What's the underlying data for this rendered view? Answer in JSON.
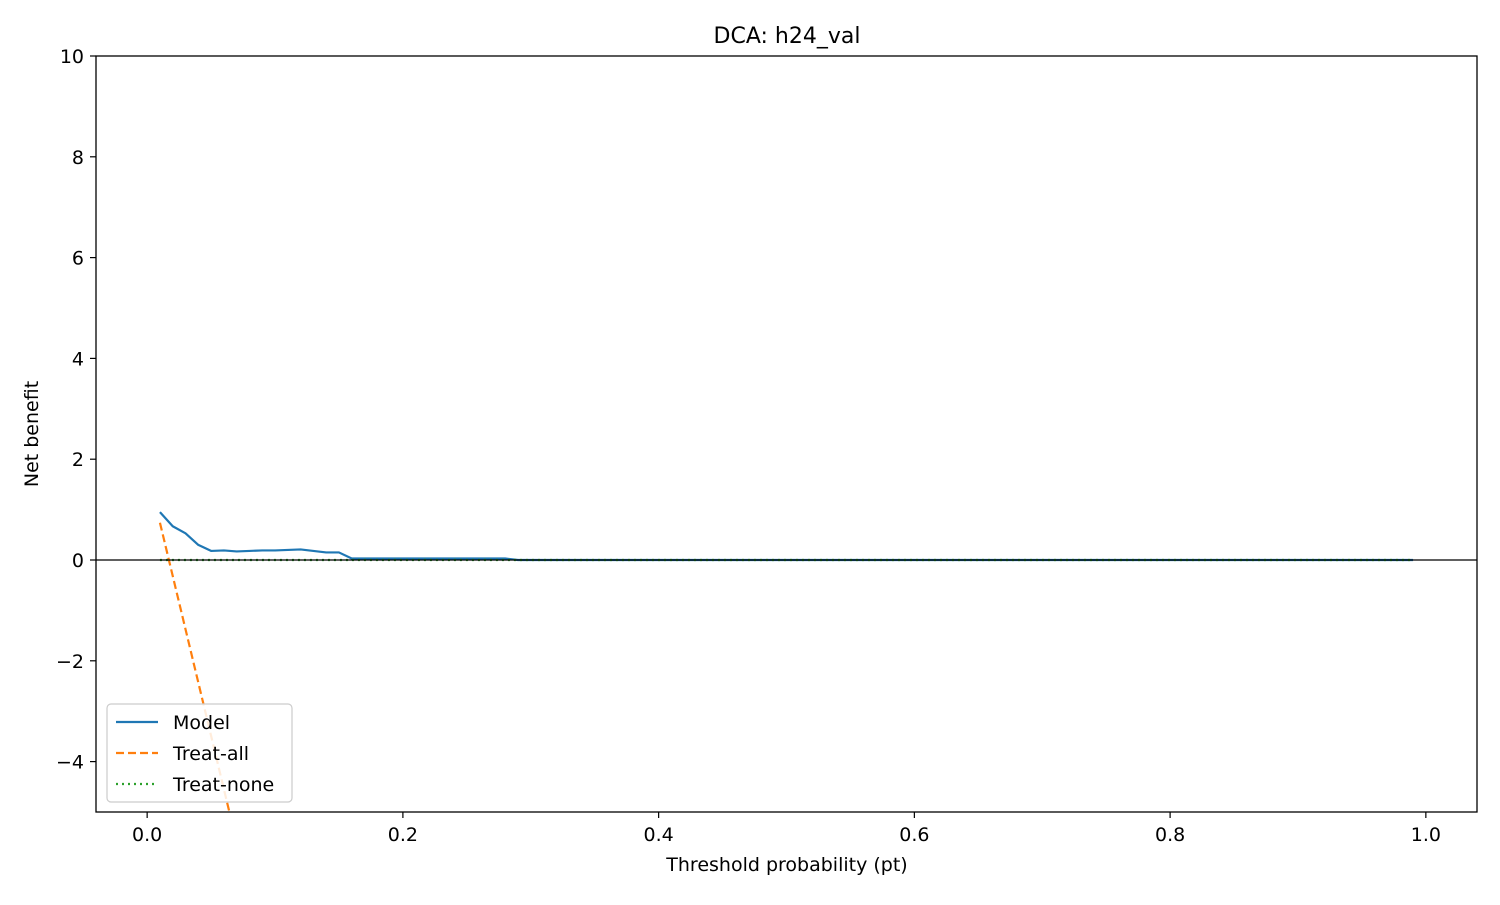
{
  "chart_data": {
    "type": "line",
    "title": "DCA: h24_val",
    "xlabel": "Threshold probability (pt)",
    "ylabel": "Net benefit",
    "xlim": [
      -0.04,
      1.04
    ],
    "ylim": [
      -5,
      10
    ],
    "x_ticks": [
      0.0,
      0.2,
      0.4,
      0.6,
      0.8,
      1.0
    ],
    "x_tick_labels": [
      "0.0",
      "0.2",
      "0.4",
      "0.6",
      "0.8",
      "1.0"
    ],
    "y_ticks": [
      -4,
      -2,
      0,
      2,
      4,
      6,
      8,
      10
    ],
    "y_tick_labels": [
      "−4",
      "−2",
      "0",
      "2",
      "4",
      "6",
      "8",
      "10"
    ],
    "reference_line_y": 0,
    "grid": false,
    "legend_position": "lower-left",
    "series": [
      {
        "name": "Model",
        "color": "#1f77b4",
        "style": "solid",
        "x": [
          0.01,
          0.02,
          0.03,
          0.04,
          0.05,
          0.06,
          0.07,
          0.08,
          0.09,
          0.1,
          0.11,
          0.12,
          0.13,
          0.14,
          0.15,
          0.16,
          0.17,
          0.2,
          0.25,
          0.28,
          0.29,
          0.35,
          0.5,
          0.7,
          0.9,
          0.99
        ],
        "y": [
          0.95,
          0.67,
          0.53,
          0.3,
          0.18,
          0.19,
          0.17,
          0.18,
          0.19,
          0.19,
          0.2,
          0.21,
          0.18,
          0.15,
          0.15,
          0.03,
          0.03,
          0.03,
          0.03,
          0.03,
          0.0,
          0.0,
          0.0,
          0.0,
          0.0,
          0.0
        ]
      },
      {
        "name": "Treat-all",
        "color": "#ff7f0e",
        "style": "dashed",
        "x": [
          0.01,
          0.0643
        ],
        "y": [
          0.74,
          -5.0
        ]
      },
      {
        "name": "Treat-none",
        "color": "#2ca02c",
        "style": "dotted",
        "x": [
          0.01,
          0.99
        ],
        "y": [
          0.0,
          0.0
        ]
      }
    ]
  }
}
